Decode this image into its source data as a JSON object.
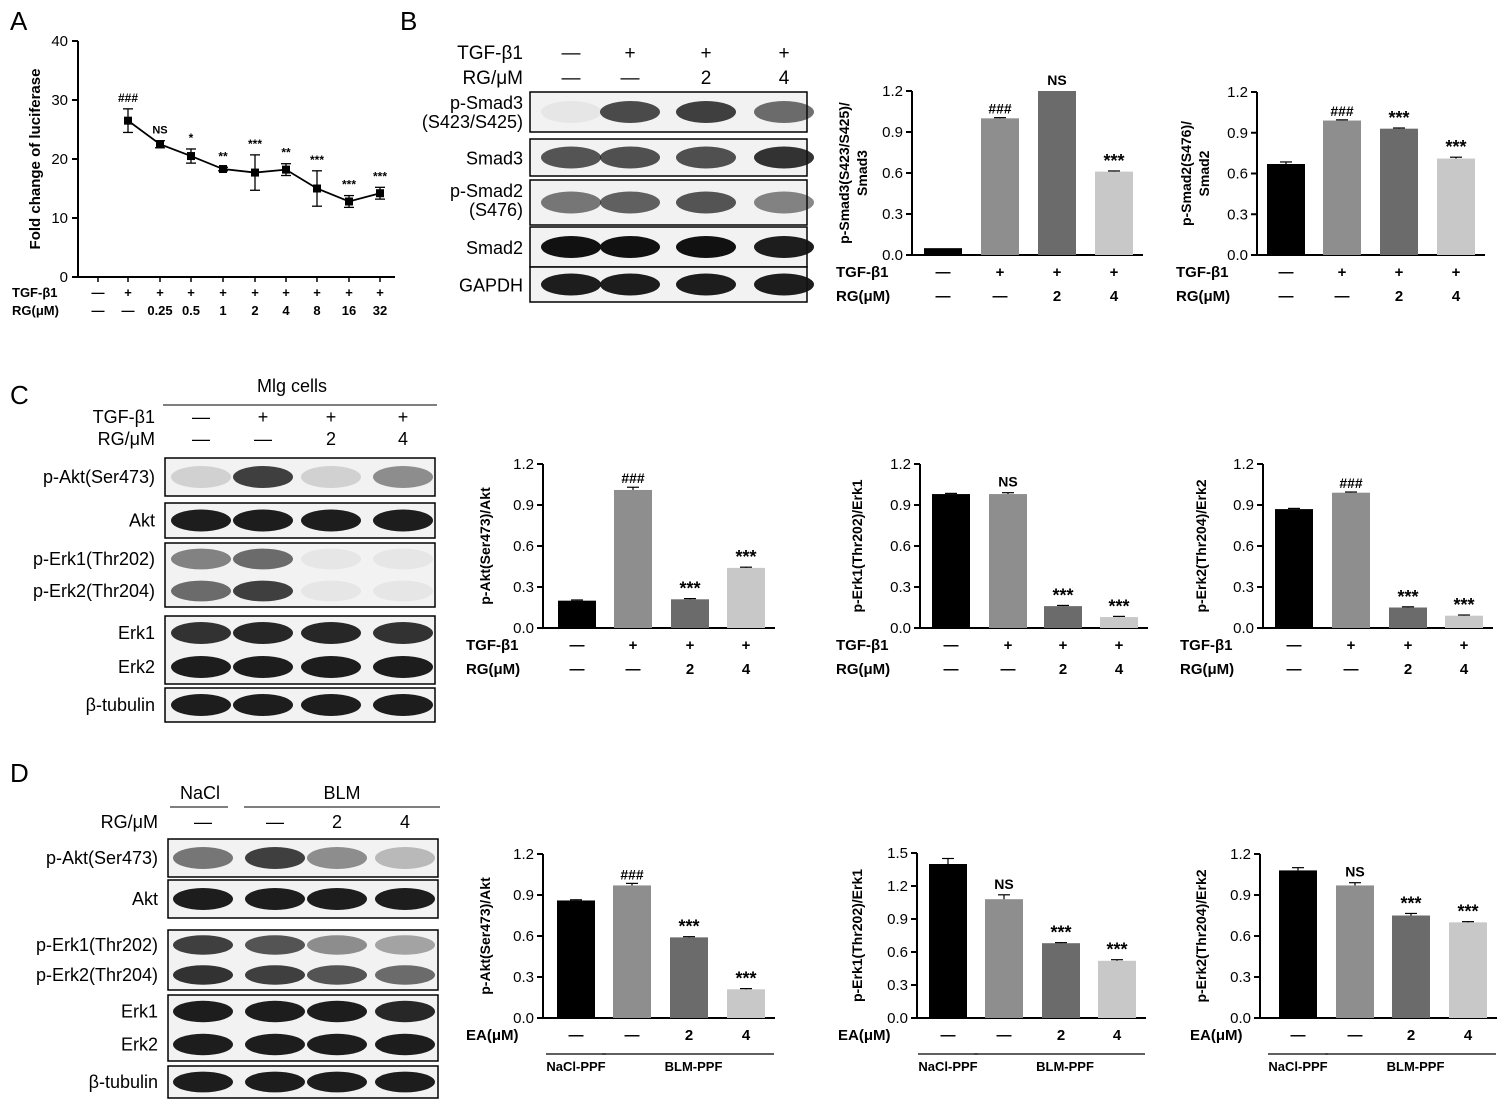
{
  "panels": {
    "A": {
      "letter": "A",
      "chart_data": {
        "type": "line",
        "ylabel": "Fold change of luciferase",
        "ylim": [
          0,
          40
        ],
        "yticks": [
          "0",
          "10",
          "20",
          "30",
          "40"
        ],
        "x": [
          "1",
          "2",
          "3",
          "4",
          "5",
          "6",
          "7",
          "8",
          "9",
          "10"
        ],
        "values": [
          null,
          26.5,
          22.5,
          20.5,
          18.3,
          17.7,
          18.2,
          15.0,
          12.8,
          14.2
        ],
        "errors": [
          null,
          2.0,
          0.6,
          1.2,
          0.3,
          3.0,
          1.0,
          3.0,
          1.0,
          1.0
        ],
        "annotations": [
          "",
          "###",
          "NS",
          "*",
          "**",
          "***",
          "**",
          "***",
          "***",
          "***"
        ],
        "treatments": [
          {
            "label": "TGF-β1",
            "values": [
              "—",
              "+",
              "+",
              "+",
              "+",
              "+",
              "+",
              "+",
              "+",
              "+"
            ]
          },
          {
            "label": "RG(μM)",
            "values": [
              "—",
              "—",
              "0.25",
              "0.5",
              "1",
              "2",
              "4",
              "8",
              "16",
              "32"
            ]
          }
        ]
      }
    },
    "B": {
      "letter": "B",
      "blot": {
        "treatments": [
          {
            "label": "TGF-β1",
            "values": [
              "—",
              "+",
              "+",
              "+"
            ]
          },
          {
            "label": "RG/μM",
            "values": [
              "—",
              "—",
              "2",
              "4"
            ]
          }
        ],
        "rows": [
          {
            "label": "p-Smad3",
            "label2": "(S423/S425)",
            "intensity": [
              0.05,
              0.75,
              0.8,
              0.6
            ]
          },
          {
            "label": "Smad3",
            "intensity": [
              0.7,
              0.72,
              0.72,
              0.85
            ]
          },
          {
            "label": "p-Smad2",
            "label2": "(S476)",
            "intensity": [
              0.55,
              0.65,
              0.7,
              0.5
            ]
          },
          {
            "label": "Smad2",
            "intensity": [
              1,
              1,
              1,
              0.95
            ]
          },
          {
            "label": "GAPDH",
            "intensity": [
              0.95,
              0.95,
              0.95,
              0.95
            ]
          }
        ]
      },
      "chart_data": [
        {
          "type": "bar",
          "ylabel": "p-Smad3(S423/S425)/ Smad3",
          "ylim": [
            0,
            1.2
          ],
          "yticks": [
            "0.0",
            "0.3",
            "0.6",
            "0.9",
            "1.2"
          ],
          "values": [
            0.05,
            1.0,
            1.2,
            0.61
          ],
          "errors": [
            0,
            0.005,
            0,
            0.005
          ],
          "annotations": [
            "",
            "###",
            "NS",
            "***"
          ],
          "colors": [
            "#000000",
            "#8e8e8e",
            "#6b6b6b",
            "#c8c8c8"
          ],
          "treatments": [
            {
              "label": "TGF-β1",
              "values": [
                "—",
                "+",
                "+",
                "+"
              ]
            },
            {
              "label": "RG(μM)",
              "values": [
                "—",
                "—",
                "2",
                "4"
              ]
            }
          ]
        },
        {
          "type": "bar",
          "ylabel": "p-Smad2(S476)/ Smad2",
          "ylim": [
            0,
            1.2
          ],
          "yticks": [
            "0.0",
            "0.3",
            "0.6",
            "0.9",
            "1.2"
          ],
          "values": [
            0.67,
            0.99,
            0.93,
            0.71
          ],
          "errors": [
            0.015,
            0.005,
            0.005,
            0.01
          ],
          "annotations": [
            "",
            "###",
            "***",
            "***"
          ],
          "colors": [
            "#000000",
            "#8e8e8e",
            "#6b6b6b",
            "#c8c8c8"
          ],
          "treatments": [
            {
              "label": "TGF-β1",
              "values": [
                "—",
                "+",
                "+",
                "+"
              ]
            },
            {
              "label": "RG(μM)",
              "values": [
                "—",
                "—",
                "2",
                "4"
              ]
            }
          ]
        }
      ]
    },
    "C": {
      "letter": "C",
      "blot": {
        "cell_label": "Mlg cells",
        "treatments": [
          {
            "label": "TGF-β1",
            "values": [
              "—",
              "+",
              "+",
              "+"
            ]
          },
          {
            "label": "RG/μM",
            "values": [
              "—",
              "—",
              "2",
              "4"
            ]
          }
        ],
        "boxes": [
          {
            "labels": [
              "p-Akt(Ser473)"
            ],
            "intensity": [
              [
                0.15,
                0.8,
                0.15,
                0.45
              ]
            ]
          },
          {
            "labels": [
              "Akt"
            ],
            "intensity": [
              [
                0.95,
                0.95,
                0.95,
                0.95
              ]
            ]
          },
          {
            "labels": [
              "p-Erk1(Thr202)",
              "p-Erk2(Thr204)"
            ],
            "intensity": [
              [
                0.5,
                0.6,
                0.05,
                0.05
              ],
              [
                0.6,
                0.8,
                0.05,
                0.05
              ]
            ]
          },
          {
            "labels": [
              "Erk1",
              "Erk2"
            ],
            "intensity": [
              [
                0.85,
                0.9,
                0.9,
                0.85
              ],
              [
                0.95,
                0.95,
                0.95,
                0.95
              ]
            ]
          },
          {
            "labels": [
              "β-tubulin"
            ],
            "intensity": [
              [
                0.95,
                0.95,
                0.95,
                0.95
              ]
            ]
          }
        ]
      },
      "chart_data": [
        {
          "type": "bar",
          "ylabel": "p-Akt(Ser473)/Akt",
          "ylim": [
            0,
            1.2
          ],
          "yticks": [
            "0.0",
            "0.3",
            "0.6",
            "0.9",
            "1.2"
          ],
          "values": [
            0.2,
            1.01,
            0.21,
            0.44
          ],
          "errors": [
            0.005,
            0.02,
            0.005,
            0.005
          ],
          "annotations": [
            "",
            "###",
            "***",
            "***"
          ],
          "colors": [
            "#000000",
            "#8e8e8e",
            "#6b6b6b",
            "#c8c8c8"
          ],
          "treatments": [
            {
              "label": "TGF-β1",
              "values": [
                "—",
                "+",
                "+",
                "+"
              ]
            },
            {
              "label": "RG(μM)",
              "values": [
                "—",
                "—",
                "2",
                "4"
              ]
            }
          ]
        },
        {
          "type": "bar",
          "ylabel": "p-Erk1(Thr202)/Erk1",
          "ylim": [
            0,
            1.2
          ],
          "yticks": [
            "0.0",
            "0.3",
            "0.6",
            "0.9",
            "1.2"
          ],
          "values": [
            0.98,
            0.98,
            0.16,
            0.08
          ],
          "errors": [
            0.005,
            0.01,
            0.005,
            0.005
          ],
          "annotations": [
            "",
            "NS",
            "***",
            "***"
          ],
          "colors": [
            "#000000",
            "#8e8e8e",
            "#6b6b6b",
            "#c8c8c8"
          ],
          "treatments": [
            {
              "label": "TGF-β1",
              "values": [
                "—",
                "+",
                "+",
                "+"
              ]
            },
            {
              "label": "RG(μM)",
              "values": [
                "—",
                "—",
                "2",
                "4"
              ]
            }
          ]
        },
        {
          "type": "bar",
          "ylabel": "p-Erk2(Thr204)/Erk2",
          "ylim": [
            0,
            1.2
          ],
          "yticks": [
            "0.0",
            "0.3",
            "0.6",
            "0.9",
            "1.2"
          ],
          "values": [
            0.87,
            0.99,
            0.15,
            0.09
          ],
          "errors": [
            0.005,
            0.005,
            0.005,
            0.005
          ],
          "annotations": [
            "",
            "###",
            "***",
            "***"
          ],
          "colors": [
            "#000000",
            "#8e8e8e",
            "#6b6b6b",
            "#c8c8c8"
          ],
          "treatments": [
            {
              "label": "TGF-β1",
              "values": [
                "—",
                "+",
                "+",
                "+"
              ]
            },
            {
              "label": "RG(μM)",
              "values": [
                "—",
                "—",
                "2",
                "4"
              ]
            }
          ]
        }
      ]
    },
    "D": {
      "letter": "D",
      "blot": {
        "group_left": "NaCl",
        "group_right": "BLM",
        "treatments": [
          {
            "label": "RG/μM",
            "values": [
              "—",
              "—",
              "2",
              "4"
            ]
          }
        ],
        "boxes": [
          {
            "labels": [
              "p-Akt(Ser473)"
            ],
            "intensity": [
              [
                0.55,
                0.8,
                0.45,
                0.25
              ]
            ]
          },
          {
            "labels": [
              "Akt"
            ],
            "intensity": [
              [
                0.95,
                0.95,
                0.95,
                0.95
              ]
            ]
          },
          {
            "labels": [
              "p-Erk1(Thr202)",
              "p-Erk2(Thr204)"
            ],
            "intensity": [
              [
                0.8,
                0.7,
                0.45,
                0.35
              ],
              [
                0.85,
                0.8,
                0.7,
                0.6
              ]
            ]
          },
          {
            "labels": [
              "Erk1",
              "Erk2"
            ],
            "intensity": [
              [
                0.95,
                0.95,
                0.95,
                0.9
              ],
              [
                0.95,
                0.95,
                0.95,
                0.95
              ]
            ]
          },
          {
            "labels": [
              "β-tubulin"
            ],
            "intensity": [
              [
                0.95,
                0.95,
                0.95,
                0.95
              ]
            ]
          }
        ]
      },
      "chart_data": [
        {
          "type": "bar",
          "ylabel": "p-Akt(Ser473)/Akt",
          "ylim": [
            0,
            1.2
          ],
          "yticks": [
            "0.0",
            "0.3",
            "0.6",
            "0.9",
            "1.2"
          ],
          "values": [
            0.86,
            0.97,
            0.59,
            0.21
          ],
          "errors": [
            0.005,
            0.015,
            0.005,
            0.005
          ],
          "annotations": [
            "",
            "###",
            "***",
            "***"
          ],
          "colors": [
            "#000000",
            "#8e8e8e",
            "#6b6b6b",
            "#c8c8c8"
          ],
          "treatments": [
            {
              "label": "EA(μM)",
              "values": [
                "—",
                "—",
                "2",
                "4"
              ]
            }
          ],
          "groups": [
            "NaCl-PPF",
            "BLM-PPF"
          ]
        },
        {
          "type": "bar",
          "ylabel": "p-Erk1(Thr202)/Erk1",
          "ylim": [
            0,
            1.5
          ],
          "yticks": [
            "0.0",
            "0.3",
            "0.6",
            "0.9",
            "1.2",
            "1.5"
          ],
          "values": [
            1.4,
            1.08,
            0.68,
            0.52
          ],
          "errors": [
            0.05,
            0.04,
            0.005,
            0.01
          ],
          "annotations": [
            "",
            "NS",
            "***",
            "***"
          ],
          "colors": [
            "#000000",
            "#8e8e8e",
            "#6b6b6b",
            "#c8c8c8"
          ],
          "treatments": [
            {
              "label": "EA(μM)",
              "values": [
                "—",
                "—",
                "2",
                "4"
              ]
            }
          ],
          "groups": [
            "NaCl-PPF",
            "BLM-PPF"
          ]
        },
        {
          "type": "bar",
          "ylabel": "p-Erk2(Thr204)/Erk2",
          "ylim": [
            0,
            1.2
          ],
          "yticks": [
            "0.0",
            "0.3",
            "0.6",
            "0.9",
            "1.2"
          ],
          "values": [
            1.08,
            0.97,
            0.75,
            0.7
          ],
          "errors": [
            0.02,
            0.02,
            0.015,
            0.005
          ],
          "annotations": [
            "",
            "NS",
            "***",
            "***"
          ],
          "colors": [
            "#000000",
            "#8e8e8e",
            "#6b6b6b",
            "#c8c8c8"
          ],
          "treatments": [
            {
              "label": "EA(μM)",
              "values": [
                "—",
                "—",
                "2",
                "4"
              ]
            }
          ],
          "groups": [
            "NaCl-PPF",
            "BLM-PPF"
          ]
        }
      ]
    }
  }
}
